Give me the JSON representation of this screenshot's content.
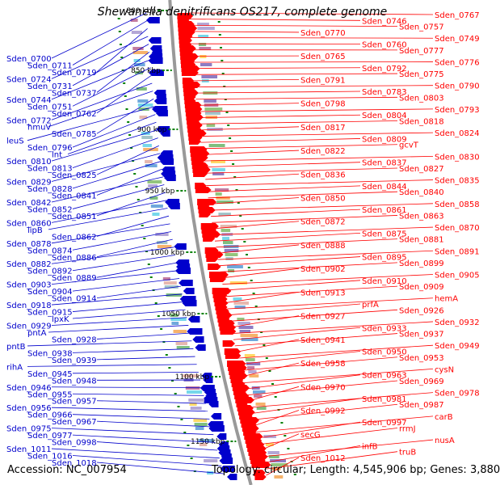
{
  "title": "Shewanella denitrificans OS217, complete genome",
  "footer": {
    "accession_label": "Accession:",
    "accession": "NC_007954",
    "topology_label": "Topology:",
    "topology": "circular",
    "length_label": "Length:",
    "length": "4,545,906 bp",
    "genes_label": "Genes:",
    "genes": "3,880"
  },
  "colors": {
    "forward_strand": "#ff0000",
    "reverse_strand": "#0000cc",
    "backbone": "#999999",
    "tick_mark": "#008000"
  },
  "scale_ticks": [
    "800 kbp",
    "850 kbp",
    "900 kbp",
    "950 kbp",
    "1000 kbp",
    "1050 kbp",
    "1100 kbp",
    "1150 kbp"
  ],
  "left_labels": [
    "Sden_0700",
    "Sden_0711",
    "Sden_0719",
    "Sden_0724",
    "Sden_0731",
    "Sden_0737",
    "Sden_0744",
    "Sden_0751",
    "Sden_0762",
    "Sden_0772",
    "hmuV",
    "Sden_0785",
    "leuS",
    "Sden_0796",
    "lnt",
    "Sden_0810",
    "Sden_0813",
    "Sden_0825",
    "Sden_0829",
    "Sden_0828",
    "Sden_0841",
    "Sden_0842",
    "Sden_0852",
    "Sden_0851",
    "Sden_0860",
    "lipB",
    "Sden_0862",
    "Sden_0878",
    "Sden_0874",
    "Sden_0886",
    "Sden_0882",
    "Sden_0892",
    "Sden_0889",
    "Sden_0903",
    "Sden_0904",
    "Sden_0914",
    "Sden_0918",
    "Sden_0915",
    "lpxK",
    "Sden_0929",
    "pntA",
    "Sden_0928",
    "pntB",
    "Sden_0938",
    "Sden_0939",
    "rihA",
    "Sden_0945",
    "Sden_0948",
    "Sden_0946",
    "Sden_0955",
    "Sden_0957",
    "Sden_0956",
    "Sden_0966",
    "Sden_0967",
    "Sden_0975",
    "Sden_0977",
    "Sden_0998",
    "Sden_1011",
    "Sden_1016",
    "Sden_1018"
  ],
  "right_labels": [
    "Sden_0767",
    "Sden_0746",
    "Sden_0757",
    "Sden_0770",
    "Sden_0749",
    "Sden_0760",
    "Sden_0777",
    "Sden_0765",
    "Sden_0776",
    "Sden_0792",
    "Sden_0775",
    "Sden_0791",
    "Sden_0790",
    "Sden_0783",
    "Sden_0803",
    "Sden_0798",
    "Sden_0793",
    "Sden_0804",
    "Sden_0818",
    "Sden_0817",
    "Sden_0824",
    "Sden_0809",
    "gcvT",
    "Sden_0822",
    "Sden_0830",
    "Sden_0837",
    "Sden_0827",
    "Sden_0836",
    "Sden_0835",
    "Sden_0844",
    "Sden_0840",
    "Sden_0850",
    "Sden_0858",
    "Sden_0861",
    "Sden_0863",
    "Sden_0872",
    "Sden_0870",
    "Sden_0875",
    "Sden_0881",
    "Sden_0888",
    "Sden_0891",
    "Sden_0895",
    "Sden_0899",
    "Sden_0902",
    "Sden_0905",
    "Sden_0910",
    "Sden_0909",
    "Sden_0913",
    "hemA",
    "prfA",
    "Sden_0926",
    "Sden_0927",
    "Sden_0932",
    "Sden_0933",
    "Sden_0937",
    "Sden_0941",
    "Sden_0949",
    "Sden_0950",
    "Sden_0953",
    "Sden_0958",
    "cysN",
    "Sden_0963",
    "Sden_0969",
    "Sden_0970",
    "Sden_0978",
    "Sden_0981",
    "Sden_0987",
    "Sden_0992",
    "carB",
    "Sden_0997",
    "rrmJ",
    "secG",
    "nusA",
    "infB",
    "truB",
    "Sden_1012"
  ]
}
